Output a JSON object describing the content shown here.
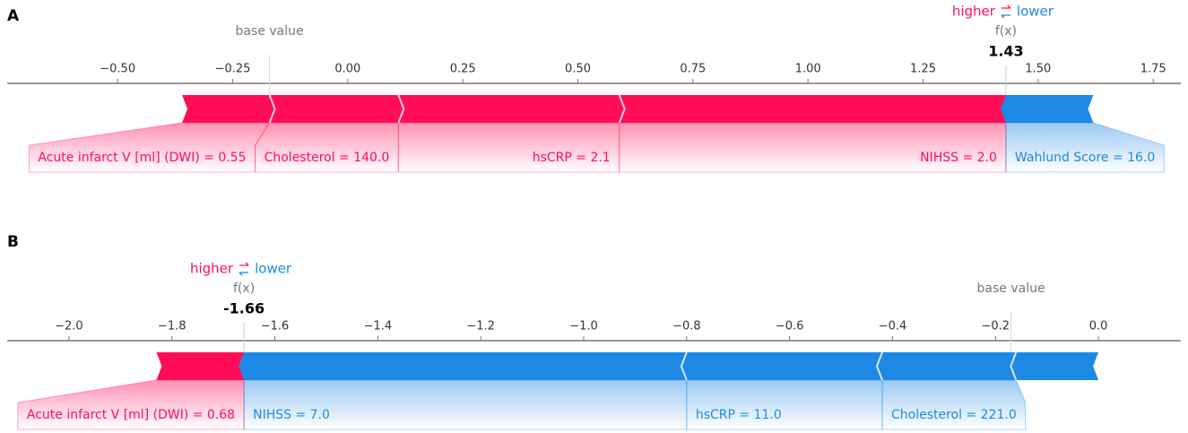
{
  "chart_data": [
    {
      "type": "force",
      "panel_label": "A",
      "higher_label": "higher",
      "lower_label": "lower",
      "base_value_label": "base value",
      "output_label": "f(x)",
      "base_value": -0.17,
      "output_value": 1.43,
      "positive_color": "#ff0d57",
      "negative_color": "#1e88e5",
      "categories": [
        "Acute infarct V [ml] (DWI) = 0.55",
        "Cholesterol = 140.0",
        "hsCRP = 2.1",
        "NIHSS = 2.0",
        "Wahlund Score = 16.0"
      ],
      "values": [
        0.19,
        0.28,
        0.48,
        0.84,
        -0.19
      ],
      "xlim": [
        -0.74,
        1.81
      ],
      "xticks": [
        {
          "value": -0.5,
          "label": "−0.50"
        },
        {
          "value": -0.25,
          "label": "−0.25"
        },
        {
          "value": 0,
          "label": "0.00"
        },
        0.25,
        {
          "value": 0.5,
          "label": "0.50"
        },
        0.75,
        {
          "value": 1,
          "label": "1.00"
        },
        1.25,
        {
          "value": 1.5,
          "label": "1.50"
        },
        1.75
      ]
    },
    {
      "type": "force",
      "panel_label": "B",
      "higher_label": "higher",
      "lower_label": "lower",
      "base_value_label": "base value",
      "output_label": "f(x)",
      "base_value": -0.17,
      "output_value": -1.66,
      "positive_color": "#ff0d57",
      "negative_color": "#1e88e5",
      "categories": [
        "Acute infarct V [ml] (DWI) = 0.68",
        "NIHSS = 7.0",
        "hsCRP = 11.0",
        "Cholesterol = 221.0",
        null
      ],
      "values": [
        0.17,
        -0.86,
        -0.38,
        -0.26,
        -0.16
      ],
      "xlim": [
        -2.12,
        0.16
      ],
      "xticks": [
        {
          "value": -2,
          "label": "−2.0"
        },
        {
          "value": -1.8,
          "label": "−1.8"
        },
        {
          "value": -1.6,
          "label": "−1.6"
        },
        {
          "value": -1.4,
          "label": "−1.4"
        },
        {
          "value": -1.2,
          "label": "−1.2"
        },
        {
          "value": -1,
          "label": "−1.0"
        },
        {
          "value": -0.8,
          "label": "−0.8"
        },
        {
          "value": -0.6,
          "label": "−0.6"
        },
        {
          "value": -0.4,
          "label": "−0.4"
        },
        {
          "value": -0.2,
          "label": "−0.2"
        },
        {
          "value": 0,
          "label": "0.0"
        }
      ]
    }
  ]
}
